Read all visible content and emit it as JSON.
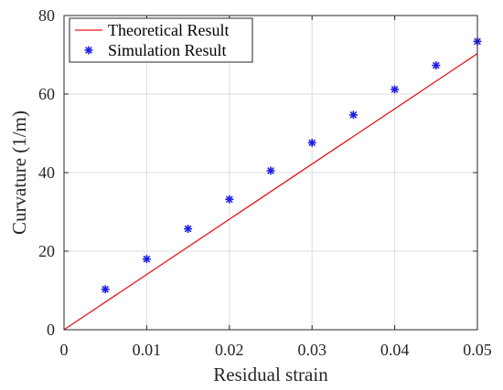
{
  "chart_data": {
    "type": "line",
    "title": "",
    "xlabel": "Residual strain",
    "ylabel": "Curvature (1/m)",
    "xlim": [
      0,
      0.05
    ],
    "ylim": [
      0,
      80
    ],
    "xticks": [
      "0",
      "0.01",
      "0.02",
      "0.03",
      "0.04",
      "0.05"
    ],
    "yticks": [
      "0",
      "20",
      "40",
      "60",
      "80"
    ],
    "grid": true,
    "legend_position": "top-left",
    "series": [
      {
        "name": "Theoretical Result",
        "style": "line",
        "color": "#e8141e",
        "x": [
          0,
          0.05
        ],
        "y": [
          0,
          70.3
        ]
      },
      {
        "name": "Simulation Result",
        "style": "marker",
        "marker": "asterisk",
        "color": "#1f1fe6",
        "x": [
          0.005,
          0.01,
          0.015,
          0.02,
          0.025,
          0.03,
          0.035,
          0.04,
          0.045,
          0.05
        ],
        "y": [
          10.3,
          18.0,
          25.7,
          33.2,
          40.5,
          47.6,
          54.7,
          61.2,
          67.3,
          73.4
        ]
      }
    ]
  }
}
